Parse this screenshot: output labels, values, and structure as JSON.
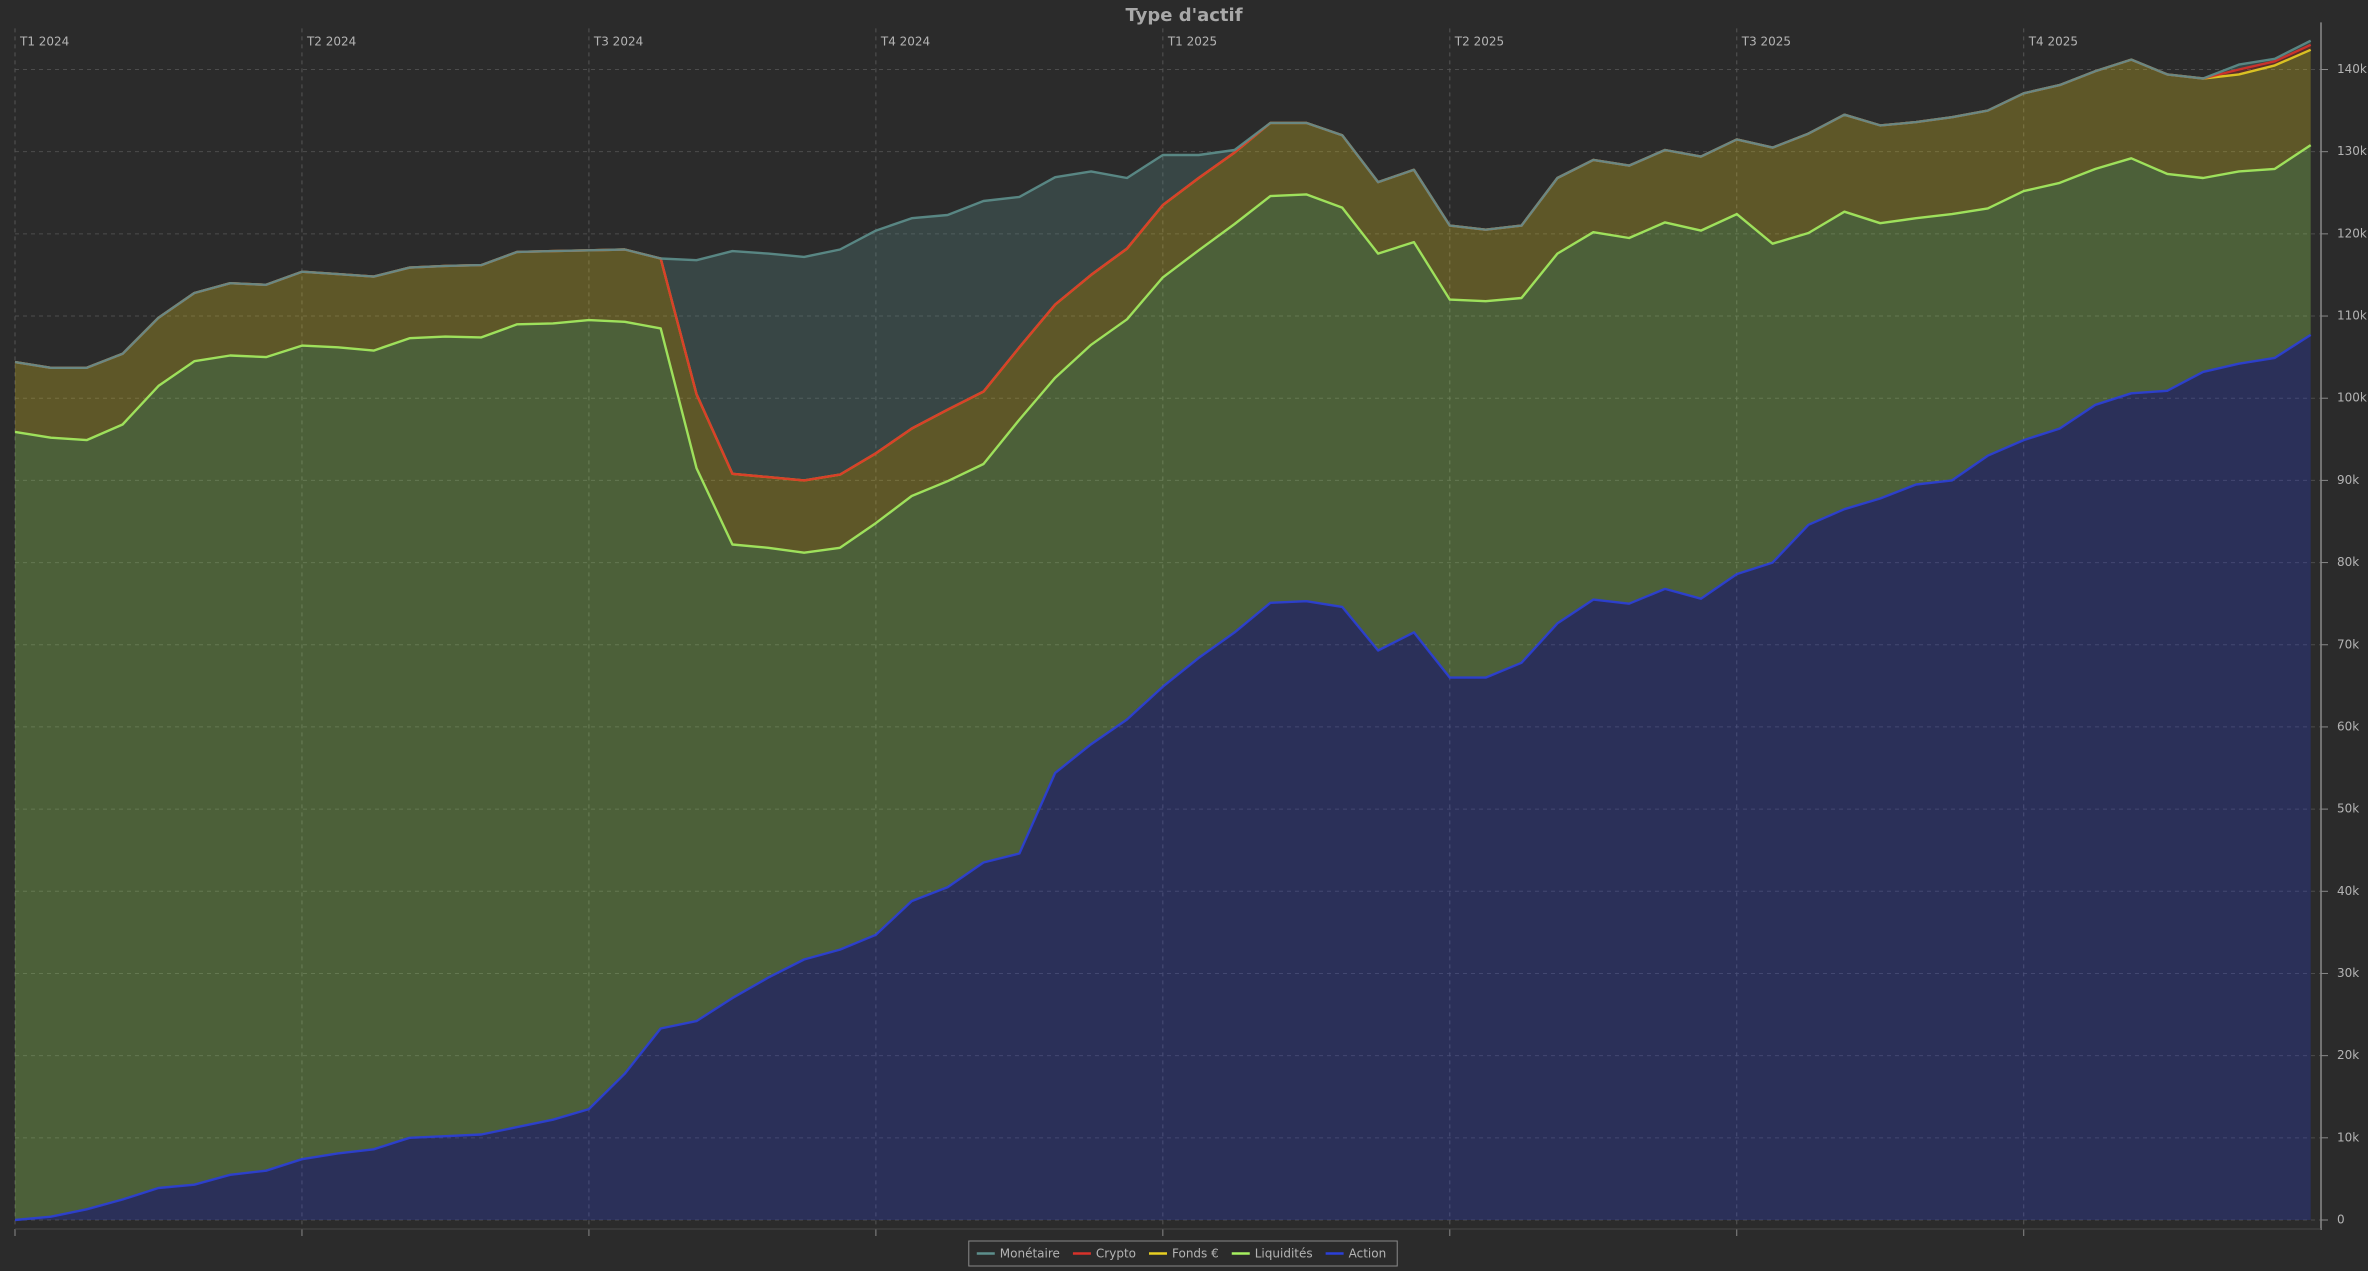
{
  "chart_data": {
    "type": "stacked_area",
    "title": "Type d'actif",
    "categories": [
      "T1 2024",
      null,
      null,
      null,
      null,
      null,
      null,
      null,
      "T2 2024",
      null,
      null,
      null,
      null,
      null,
      null,
      null,
      "T3 2024",
      null,
      null,
      null,
      null,
      null,
      null,
      null,
      "T4 2024",
      null,
      null,
      null,
      null,
      null,
      null,
      null,
      "T1 2025",
      null,
      null,
      null,
      null,
      null,
      null,
      null,
      "T2 2025",
      null,
      null,
      null,
      null,
      null,
      null,
      null,
      "T3 2025",
      null,
      null,
      null,
      null,
      null,
      null,
      null,
      "T4 2025",
      null,
      null,
      null,
      null,
      null,
      null,
      null,
      null
    ],
    "series": [
      {
        "name": "Monétaire",
        "color": "#5d8f8c",
        "values": [
          0,
          0,
          0,
          0,
          0,
          0,
          0,
          0,
          0,
          0,
          0,
          0,
          0,
          0,
          0,
          0,
          0,
          0,
          0,
          16300,
          27100,
          27200,
          27200,
          27400,
          27100,
          25600,
          23700,
          23200,
          18300,
          15500,
          12600,
          8600,
          6100,
          2800,
          300,
          0,
          0,
          0,
          0,
          0,
          0,
          0,
          0,
          0,
          0,
          0,
          0,
          0,
          0,
          0,
          0,
          0,
          0,
          0,
          0,
          0,
          0,
          0,
          0,
          0,
          0,
          0,
          600,
          300,
          500
        ]
      },
      {
        "name": "Crypto",
        "color": "#d8322a",
        "values": [
          0,
          0,
          0,
          0,
          0,
          0,
          0,
          0,
          0,
          0,
          0,
          0,
          0,
          0,
          0,
          0,
          0,
          0,
          0,
          0,
          0,
          0,
          0,
          0,
          0,
          0,
          0,
          0,
          0,
          0,
          0,
          0,
          0,
          0,
          0,
          0,
          0,
          0,
          0,
          0,
          0,
          0,
          0,
          0,
          0,
          0,
          0,
          0,
          0,
          0,
          0,
          0,
          0,
          0,
          0,
          0,
          0,
          0,
          0,
          0,
          0,
          0,
          600,
          500,
          600
        ]
      },
      {
        "name": "Fonds €",
        "color": "#e8cf22",
        "values": [
          8500,
          8500,
          8800,
          8600,
          8300,
          8300,
          8800,
          8800,
          9000,
          8900,
          9000,
          8600,
          8600,
          8800,
          8800,
          8800,
          8500,
          8800,
          8500,
          9000,
          8600,
          8600,
          8800,
          8900,
          8500,
          8200,
          8700,
          8800,
          8800,
          8900,
          8500,
          8600,
          8800,
          8800,
          8700,
          8900,
          8700,
          8800,
          8700,
          8800,
          9000,
          8700,
          8800,
          9200,
          8800,
          8800,
          8800,
          9000,
          9100,
          11700,
          12100,
          11800,
          11900,
          11700,
          11800,
          11900,
          11900,
          11900,
          11900,
          12000,
          12100,
          12100,
          11800,
          12600,
          11600
        ]
      },
      {
        "name": "Liquidités",
        "color": "#a6f060",
        "values": [
          95900,
          94800,
          93600,
          94300,
          97600,
          100200,
          99700,
          99000,
          99000,
          98100,
          97200,
          97300,
          97300,
          97000,
          97700,
          96900,
          96000,
          91500,
          85200,
          67300,
          55200,
          52300,
          49500,
          48900,
          50100,
          49300,
          49400,
          48500,
          52800,
          48100,
          48600,
          48700,
          49800,
          49600,
          49700,
          49500,
          49500,
          48600,
          48300,
          47500,
          46000,
          45800,
          44400,
          45000,
          44700,
          44500,
          44600,
          44800,
          43800,
          38800,
          35500,
          36200,
          33500,
          32400,
          32400,
          30100,
          30300,
          29900,
          28700,
          28600,
          26400,
          23600,
          23400,
          23000,
          23100
        ]
      },
      {
        "name": "Action",
        "color": "#2b3fd8",
        "values": [
          0,
          400,
          1300,
          2500,
          3900,
          4300,
          5500,
          6000,
          7400,
          8100,
          8600,
          10000,
          10200,
          10400,
          11300,
          12200,
          13500,
          17800,
          23300,
          24200,
          27000,
          29500,
          31700,
          32900,
          34700,
          38800,
          40500,
          43500,
          44600,
          54400,
          57900,
          60900,
          64900,
          68400,
          71500,
          75100,
          75300,
          74600,
          69300,
          71500,
          66000,
          66000,
          67800,
          72600,
          75500,
          75000,
          76800,
          75600,
          78600,
          80000,
          84600,
          86500,
          87800,
          89500,
          90000,
          93000,
          94900,
          96300,
          99200,
          100600,
          100900,
          103200,
          104200,
          104900,
          107700
        ]
      }
    ],
    "ylim": [
      0,
      145000
    ],
    "yticks": [
      0,
      {
        "value": 10000,
        "label": "10k"
      },
      {
        "value": 20000,
        "label": "20k"
      },
      {
        "value": 30000,
        "label": "30k"
      },
      {
        "value": 40000,
        "label": "40k"
      },
      {
        "value": 50000,
        "label": "50k"
      },
      {
        "value": 60000,
        "label": "60k"
      },
      {
        "value": 70000,
        "label": "70k"
      },
      {
        "value": 80000,
        "label": "80k"
      },
      {
        "value": 90000,
        "label": "90k"
      },
      {
        "value": 100000,
        "label": "100k"
      },
      {
        "value": 110000,
        "label": "110k"
      },
      {
        "value": 120000,
        "label": "120k"
      },
      {
        "value": 130000,
        "label": "130k"
      },
      {
        "value": 140000,
        "label": "140k"
      }
    ],
    "grid": true,
    "legend": "bottom"
  }
}
